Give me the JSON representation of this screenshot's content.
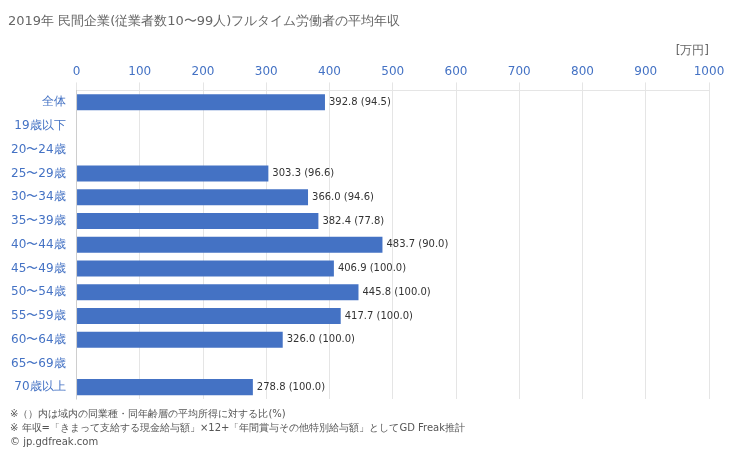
{
  "chart_data": {
    "type": "bar",
    "orientation": "horizontal",
    "title": "2019年 民間企業(従業者数10〜99人)フルタイム労働者の平均年収",
    "xlabel": "[万円]",
    "categories": [
      "全体",
      "19歳以下",
      "20〜24歳",
      "25〜29歳",
      "30〜34歳",
      "35〜39歳",
      "40〜44歳",
      "45〜49歳",
      "50〜54歳",
      "55〜59歳",
      "60〜64歳",
      "65〜69歳",
      "70歳以上"
    ],
    "values": [
      392.8,
      null,
      null,
      303.3,
      366.0,
      382.4,
      483.7,
      406.9,
      445.8,
      417.7,
      326.0,
      null,
      278.8
    ],
    "value_labels": [
      "392.8 (94.5)",
      null,
      null,
      "303.3 (96.6)",
      "366.0 (94.6)",
      "382.4 (77.8)",
      "483.7 (90.0)",
      "406.9 (100.0)",
      "445.8 (100.0)",
      "417.7 (100.0)",
      "326.0 (100.0)",
      null,
      "278.8 (100.0)"
    ],
    "data_labels": true,
    "color": "#4472C4",
    "xlim": [
      0,
      1000
    ],
    "xticks": [
      0,
      100,
      200,
      300,
      400,
      500,
      600,
      700,
      800,
      900,
      1000
    ],
    "grid": true,
    "annotations": [
      "※（）内は域内の同業種・同年齢層の平均所得に対する比(%)",
      "※ 年収=「きまって支給する現金給与額」×12+「年間賞与その他特別給与額」としてGD Freak推計",
      "© jp.gdfreak.com"
    ]
  }
}
